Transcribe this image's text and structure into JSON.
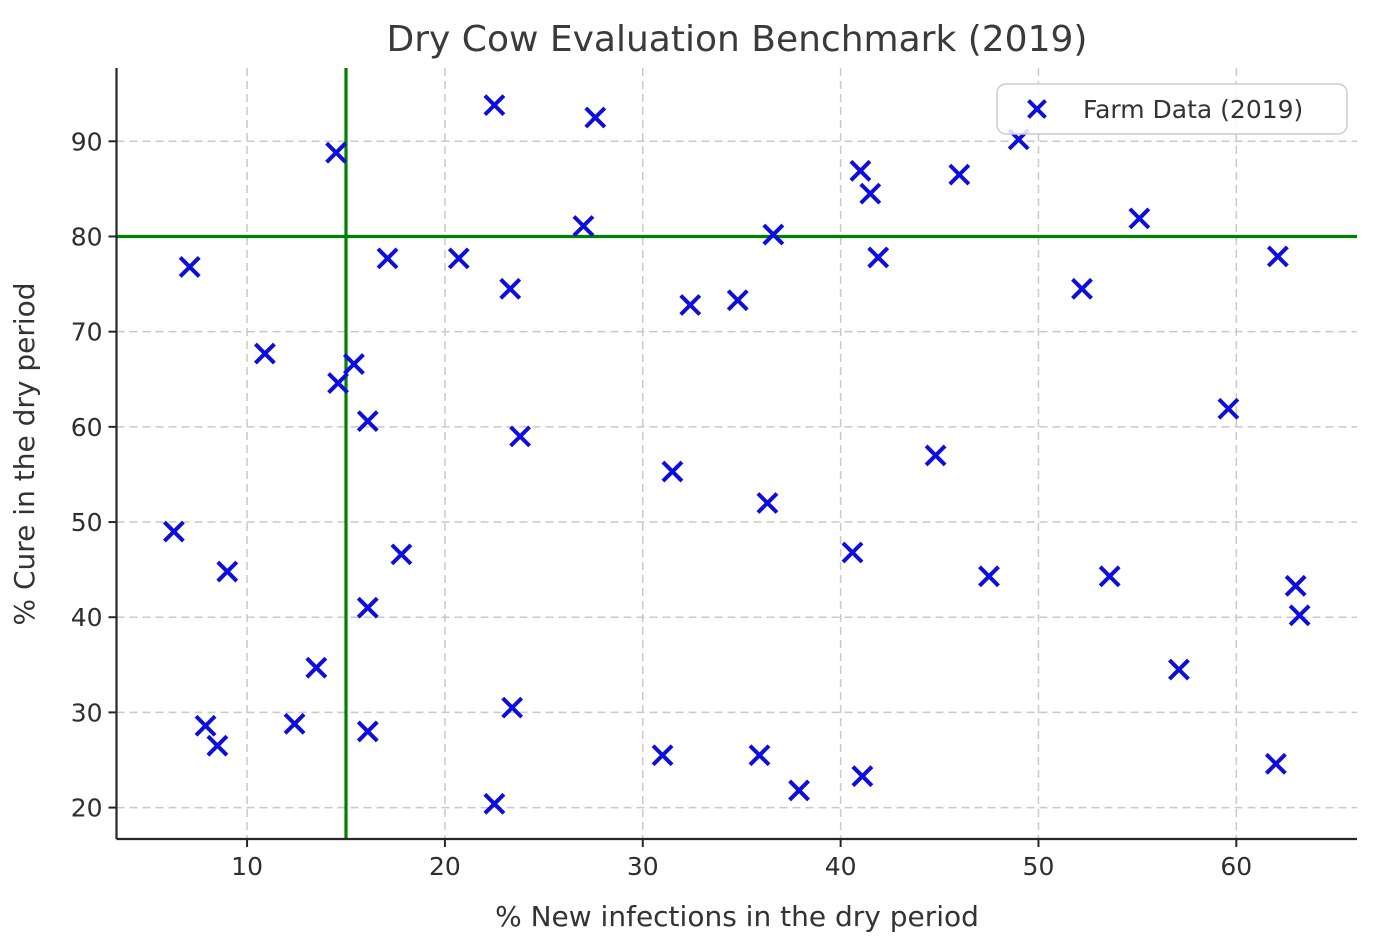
{
  "figure": {
    "title": "Dry Cow Evaluation Benchmark (2019)"
  },
  "chart_data": {
    "type": "scatter",
    "title": "Dry Cow Evaluation Benchmark (2019)",
    "xlabel": "% New infections in the dry period",
    "ylabel": "% Cure in the dry period",
    "xlim": [
      3.4,
      66.1
    ],
    "ylim": [
      16.7,
      97.7
    ],
    "xticks": [
      10,
      20,
      30,
      40,
      50,
      60
    ],
    "yticks": [
      20,
      30,
      40,
      50,
      60,
      70,
      80,
      90
    ],
    "grid": true,
    "grid_style": "dashed",
    "legend": {
      "position": "upper right",
      "entries": [
        {
          "label": "Farm Data (2019)",
          "marker": "x",
          "color": "#0d0de0"
        }
      ]
    },
    "reference_lines": [
      {
        "axis": "x",
        "value": 15,
        "color": "#008000"
      },
      {
        "axis": "y",
        "value": 80,
        "color": "#008000"
      }
    ],
    "series": [
      {
        "name": "Farm Data (2019)",
        "marker": "x",
        "color": "#0d0de0",
        "points": [
          [
            22.5,
            93.8
          ],
          [
            27.6,
            92.5
          ],
          [
            49.0,
            90.2
          ],
          [
            14.5,
            88.8
          ],
          [
            41.0,
            86.9
          ],
          [
            46.0,
            86.5
          ],
          [
            41.5,
            84.5
          ],
          [
            55.1,
            81.9
          ],
          [
            27.0,
            81.1
          ],
          [
            36.6,
            80.2
          ],
          [
            62.1,
            77.9
          ],
          [
            41.9,
            77.8
          ],
          [
            17.1,
            77.7
          ],
          [
            20.7,
            77.7
          ],
          [
            7.1,
            76.8
          ],
          [
            23.3,
            74.5
          ],
          [
            52.2,
            74.5
          ],
          [
            34.8,
            73.3
          ],
          [
            32.4,
            72.8
          ],
          [
            10.9,
            67.7
          ],
          [
            15.4,
            66.6
          ],
          [
            14.6,
            64.6
          ],
          [
            59.6,
            61.9
          ],
          [
            16.1,
            60.6
          ],
          [
            23.8,
            59.0
          ],
          [
            44.8,
            57.0
          ],
          [
            31.5,
            55.3
          ],
          [
            36.3,
            52.0
          ],
          [
            6.3,
            49.0
          ],
          [
            40.6,
            46.8
          ],
          [
            17.8,
            46.6
          ],
          [
            9.0,
            44.8
          ],
          [
            47.5,
            44.3
          ],
          [
            53.6,
            44.3
          ],
          [
            63.0,
            43.3
          ],
          [
            16.1,
            41.0
          ],
          [
            63.2,
            40.2
          ],
          [
            13.5,
            34.7
          ],
          [
            57.1,
            34.5
          ],
          [
            23.4,
            30.5
          ],
          [
            12.4,
            28.8
          ],
          [
            7.9,
            28.6
          ],
          [
            16.1,
            28.0
          ],
          [
            8.5,
            26.5
          ],
          [
            31.0,
            25.5
          ],
          [
            35.9,
            25.5
          ],
          [
            62.0,
            24.6
          ],
          [
            41.1,
            23.3
          ],
          [
            37.9,
            21.8
          ],
          [
            22.5,
            20.4
          ]
        ]
      }
    ],
    "colors": {
      "marker": "#0d0de0",
      "reference_line": "#008000",
      "grid": "#c9c9c9",
      "spine": "#262626",
      "text": "#333333",
      "title": "#3a3a3a",
      "background": "#ffffff"
    }
  }
}
